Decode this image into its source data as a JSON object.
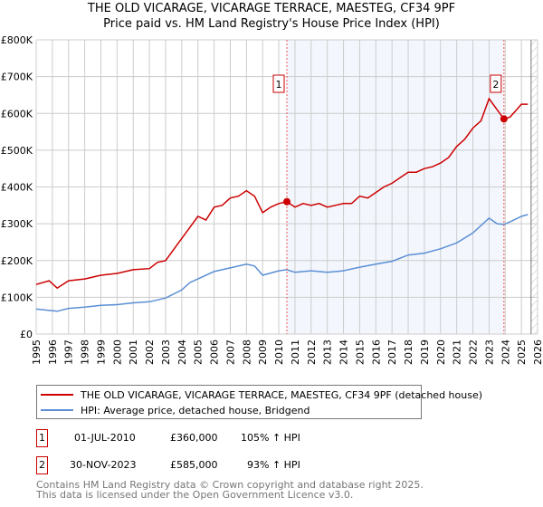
{
  "title": "THE OLD VICARAGE, VICARAGE TERRACE, MAESTEG, CF34 9PF",
  "subtitle": "Price paid vs. HM Land Registry's House Price Index (HPI)",
  "chart_data": {
    "type": "line",
    "title": "THE OLD VICARAGE, VICARAGE TERRACE, MAESTEG, CF34 9PF",
    "subtitle": "Price paid vs. HM Land Registry's House Price Index (HPI)",
    "xlabel": "",
    "ylabel": "",
    "xlim": [
      1995,
      2026
    ],
    "ylim": [
      0,
      800000
    ],
    "grid": true,
    "y_ticks": [
      0,
      100000,
      200000,
      300000,
      400000,
      500000,
      600000,
      700000,
      800000
    ],
    "y_tick_labels": [
      "£0",
      "£100K",
      "£200K",
      "£300K",
      "£400K",
      "£500K",
      "£600K",
      "£700K",
      "£800K"
    ],
    "x_ticks": [
      1995,
      1996,
      1997,
      1998,
      1999,
      2000,
      2001,
      2002,
      2003,
      2004,
      2005,
      2006,
      2007,
      2008,
      2009,
      2010,
      2011,
      2012,
      2013,
      2014,
      2015,
      2016,
      2017,
      2018,
      2019,
      2020,
      2021,
      2022,
      2023,
      2024,
      2025,
      2026
    ],
    "x_tick_labels": [
      "1995",
      "1996",
      "1997",
      "1998",
      "1999",
      "2000",
      "2001",
      "2002",
      "2003",
      "2004",
      "2005",
      "2006",
      "2007",
      "2008",
      "2009",
      "2010",
      "2011",
      "2012",
      "2013",
      "2014",
      "2015",
      "2016",
      "2017",
      "2018",
      "2019",
      "2020",
      "2021",
      "2022",
      "2023",
      "2024",
      "2025",
      "2026"
    ],
    "shaded_range": [
      2010.5,
      2023.92
    ],
    "hatched_from": 2025.6,
    "series": [
      {
        "name": "THE OLD VICARAGE, VICARAGE TERRACE, MAESTEG, CF34 9PF (detached house)",
        "color": "#cc0000",
        "x": [
          1995,
          1995.8,
          1996.3,
          1997,
          1998,
          1999,
          2000,
          2001,
          2002,
          2002.5,
          2003,
          2003.5,
          2004,
          2004.5,
          2005,
          2005.5,
          2006,
          2006.5,
          2007,
          2007.5,
          2008,
          2008.5,
          2009,
          2009.5,
          2010,
          2010.5,
          2011,
          2011.5,
          2012,
          2012.5,
          2013,
          2013.5,
          2014,
          2014.5,
          2015,
          2015.5,
          2016,
          2016.5,
          2017,
          2017.5,
          2018,
          2018.5,
          2019,
          2019.5,
          2020,
          2020.5,
          2021,
          2021.5,
          2022,
          2022.5,
          2023,
          2023.5,
          2023.92,
          2024.3,
          2024.7,
          2025,
          2025.4
        ],
        "values": [
          135000,
          145000,
          125000,
          145000,
          150000,
          160000,
          165000,
          175000,
          178000,
          195000,
          200000,
          230000,
          260000,
          290000,
          320000,
          310000,
          345000,
          350000,
          370000,
          375000,
          390000,
          375000,
          330000,
          345000,
          355000,
          360000,
          345000,
          355000,
          350000,
          355000,
          345000,
          350000,
          355000,
          355000,
          375000,
          370000,
          385000,
          400000,
          410000,
          425000,
          440000,
          440000,
          450000,
          455000,
          465000,
          480000,
          510000,
          530000,
          560000,
          580000,
          640000,
          610000,
          585000,
          590000,
          610000,
          625000,
          625000
        ]
      },
      {
        "name": "HPI: Average price, detached house, Bridgend",
        "color": "#5b8fd4",
        "x": [
          1995,
          1996.3,
          1997,
          1998,
          1999,
          2000,
          2001,
          2002,
          2003,
          2004,
          2004.5,
          2005,
          2006,
          2007,
          2008,
          2008.5,
          2009,
          2010,
          2010.5,
          2011,
          2012,
          2013,
          2014,
          2015,
          2016,
          2017,
          2018,
          2019,
          2020,
          2021,
          2022,
          2023,
          2023.5,
          2023.92,
          2024.3,
          2025,
          2025.4
        ],
        "values": [
          68000,
          62000,
          70000,
          73000,
          78000,
          80000,
          85000,
          88000,
          98000,
          120000,
          140000,
          150000,
          170000,
          180000,
          190000,
          185000,
          160000,
          172000,
          175000,
          168000,
          172000,
          168000,
          172000,
          182000,
          190000,
          198000,
          215000,
          220000,
          232000,
          248000,
          275000,
          315000,
          300000,
          298000,
          305000,
          320000,
          325000
        ]
      }
    ],
    "annotations": [
      {
        "label": "1",
        "x": 2010.5,
        "value": 360000
      },
      {
        "label": "2",
        "x": 2023.92,
        "value": 585000
      }
    ]
  },
  "legend": {
    "items": [
      {
        "label": "THE OLD VICARAGE, VICARAGE TERRACE, MAESTEG, CF34 9PF (detached house)",
        "color": "#cc0000"
      },
      {
        "label": "HPI: Average price, detached house, Bridgend",
        "color": "#5b8fd4"
      }
    ]
  },
  "transactions": [
    {
      "num": "1",
      "date": "01-JUL-2010",
      "price": "£360,000",
      "hpi": "105% ↑ HPI"
    },
    {
      "num": "2",
      "date": "30-NOV-2023",
      "price": "£585,000",
      "hpi": "93% ↑ HPI"
    }
  ],
  "footer": {
    "line1": "Contains HM Land Registry data © Crown copyright and database right 2025.",
    "line2": "This data is licensed under the Open Government Licence v3.0."
  }
}
